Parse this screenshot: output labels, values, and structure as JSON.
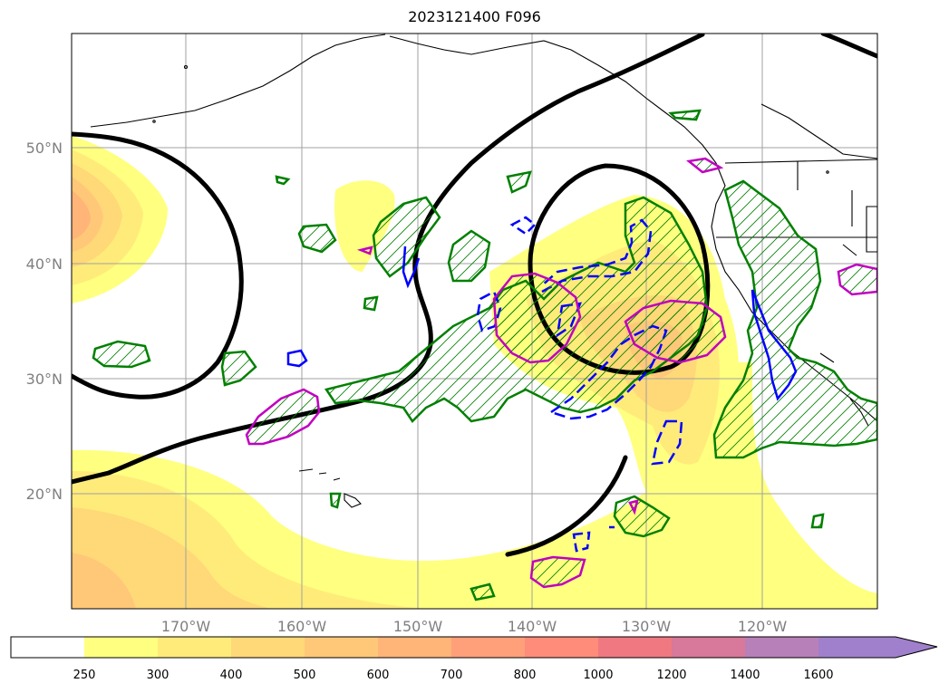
{
  "title": "2023121400 F096",
  "lat_labels": [
    "50°N",
    "40°N",
    "30°N",
    "20°N"
  ],
  "lon_labels": [
    "170°W",
    "160°W",
    "150°W",
    "140°W",
    "130°W",
    "120°W"
  ],
  "colorbar": {
    "labels": [
      "250",
      "300",
      "400",
      "500",
      "600",
      "700",
      "800",
      "1000",
      "1200",
      "1400",
      "1600"
    ],
    "colors": [
      "#ffffff",
      "#ffff80",
      "#ffeb7a",
      "#ffd878",
      "#ffc878",
      "#ffb478",
      "#ffa07a",
      "#ff8c7a",
      "#f07880",
      "#d8789a",
      "#b880b8",
      "#a080cc"
    ],
    "extend": "max"
  },
  "contour_colors": {
    "heavy": "#000000",
    "green": "#008000",
    "blue": "#0000ff",
    "magenta": "#c000c0"
  }
}
